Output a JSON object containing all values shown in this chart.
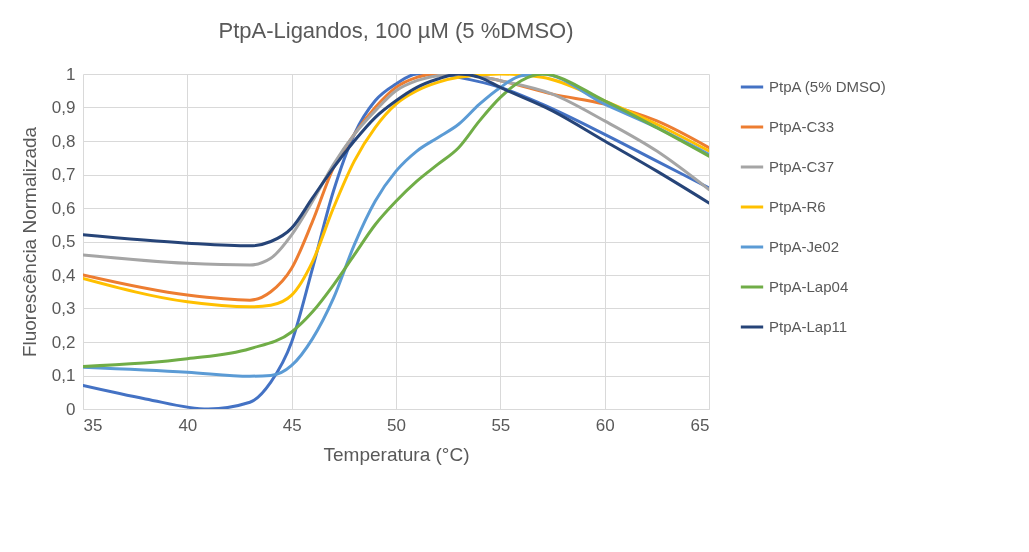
{
  "chart_data": {
    "type": "line",
    "title": "PtpA-Ligandos, 100 µM (5 %DMSO)",
    "xlabel": "Temperatura (°C)",
    "ylabel": "Fluorescência Normalizada",
    "xlim": [
      35,
      65
    ],
    "xticks": [
      35,
      40,
      45,
      50,
      55,
      60,
      65
    ],
    "ylim": [
      0,
      1
    ],
    "yticks": [
      0,
      {
        "value": 0.1,
        "label": "0,1"
      },
      {
        "value": 0.2,
        "label": "0,2"
      },
      {
        "value": 0.3,
        "label": "0,3"
      },
      {
        "value": 0.4,
        "label": "0,4"
      },
      {
        "value": 0.5,
        "label": "0,5"
      },
      {
        "value": 0.6,
        "label": "0,6"
      },
      {
        "value": 0.7,
        "label": "0,7"
      },
      {
        "value": 0.8,
        "label": "0,8"
      },
      {
        "value": 0.9,
        "label": "0,9"
      },
      1
    ],
    "grid": true,
    "legend": "right",
    "marker": "none",
    "line_style": "solid",
    "series": [
      {
        "name": "PtpA (5% DMSO)",
        "color": "#4472c4",
        "x": [
          35,
          38,
          41,
          43,
          44,
          45,
          46,
          47,
          48,
          49,
          50,
          51,
          52,
          53,
          55,
          57,
          60,
          62.5,
          65
        ],
        "values": [
          0.07,
          0.03,
          0.0,
          0.02,
          0.08,
          0.2,
          0.42,
          0.65,
          0.82,
          0.92,
          0.97,
          1.0,
          1.0,
          0.99,
          0.96,
          0.91,
          0.82,
          0.74,
          0.66
        ]
      },
      {
        "name": "PtpA-C33",
        "color": "#ed7d31",
        "x": [
          35,
          40,
          43,
          44,
          45,
          46,
          47,
          48,
          49,
          50,
          51,
          52,
          53,
          55,
          57.5,
          60,
          62.5,
          65
        ],
        "values": [
          0.4,
          0.34,
          0.325,
          0.35,
          0.42,
          0.56,
          0.72,
          0.82,
          0.9,
          0.96,
          0.99,
          1.0,
          1.0,
          0.98,
          0.94,
          0.91,
          0.86,
          0.78
        ]
      },
      {
        "name": "PtpA-C37",
        "color": "#a5a5a5",
        "x": [
          35,
          40,
          43,
          44,
          45,
          46,
          47,
          48,
          49,
          50,
          51,
          52,
          53,
          55,
          57.5,
          60,
          62.5,
          65
        ],
        "values": [
          0.46,
          0.435,
          0.43,
          0.45,
          0.52,
          0.62,
          0.73,
          0.82,
          0.89,
          0.95,
          0.98,
          0.995,
          1.0,
          0.98,
          0.94,
          0.86,
          0.77,
          0.655
        ]
      },
      {
        "name": "PtpA-R6",
        "color": "#ffc000",
        "x": [
          35,
          40,
          43,
          44,
          45,
          46,
          47,
          48,
          49,
          50,
          51,
          52,
          53,
          55,
          57,
          60,
          62.5,
          65
        ],
        "values": [
          0.39,
          0.32,
          0.305,
          0.31,
          0.34,
          0.44,
          0.6,
          0.74,
          0.84,
          0.91,
          0.95,
          0.975,
          0.99,
          1.0,
          0.99,
          0.92,
          0.85,
          0.77
        ]
      },
      {
        "name": "PtpA-Je02",
        "color": "#5b9bd5",
        "x": [
          35,
          40,
          43,
          44,
          45,
          46,
          47,
          48,
          49,
          50,
          51,
          52,
          53,
          54,
          55,
          56,
          57,
          60,
          62.5,
          65
        ],
        "values": [
          0.125,
          0.11,
          0.098,
          0.1,
          0.13,
          0.21,
          0.33,
          0.49,
          0.62,
          0.71,
          0.77,
          0.81,
          0.85,
          0.91,
          0.96,
          0.995,
          1.0,
          0.91,
          0.84,
          0.76
        ]
      },
      {
        "name": "PtpA-Lap04",
        "color": "#70ad47",
        "x": [
          35,
          40,
          43,
          45,
          46,
          47,
          48,
          49,
          50,
          51,
          52,
          53,
          54,
          55,
          56,
          57,
          60,
          62.5,
          65
        ],
        "values": [
          0.127,
          0.15,
          0.18,
          0.23,
          0.29,
          0.37,
          0.46,
          0.55,
          0.62,
          0.68,
          0.73,
          0.78,
          0.86,
          0.93,
          0.98,
          1.0,
          0.92,
          0.84,
          0.755
        ]
      },
      {
        "name": "PtpA-Lap11",
        "color": "#264478",
        "x": [
          35,
          40,
          43,
          44,
          45,
          46,
          47,
          48,
          49,
          50,
          51,
          52,
          53,
          54,
          55,
          57.5,
          60,
          62.5,
          65
        ],
        "values": [
          0.52,
          0.495,
          0.487,
          0.5,
          0.54,
          0.63,
          0.72,
          0.8,
          0.87,
          0.92,
          0.96,
          0.985,
          1.0,
          0.99,
          0.96,
          0.89,
          0.8,
          0.71,
          0.615
        ]
      }
    ]
  }
}
